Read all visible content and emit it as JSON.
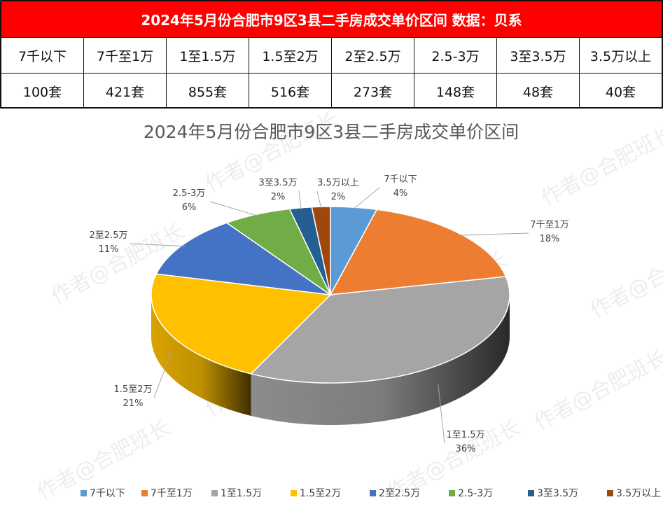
{
  "table": {
    "title": "2024年5月份合肥市9区3县二手房成交单价区间 数据：贝系",
    "headers": [
      "7千以下",
      "7千至1万",
      "1至1.5万",
      "1.5至2万",
      "2至2.5万",
      "2.5-3万",
      "3至3.5万",
      "3.5万以上"
    ],
    "values": [
      "100套",
      "421套",
      "855套",
      "516套",
      "273套",
      "148套",
      "48套",
      "40套"
    ]
  },
  "watermark": "作者@合肥班长",
  "chart_data": {
    "type": "pie",
    "title": "2024年5月份合肥市9区3县二手房成交单价区间",
    "categories": [
      "7千以下",
      "7千至1万",
      "1至1.5万",
      "1.5至2万",
      "2至2.5万",
      "2.5-3万",
      "3至3.5万",
      "3.5万以上"
    ],
    "values": [
      100,
      421,
      855,
      516,
      273,
      148,
      48,
      40
    ],
    "percent_labels": [
      "4%",
      "18%",
      "36%",
      "21%",
      "11%",
      "6%",
      "2%",
      "2%"
    ],
    "colors": [
      "#5b9bd5",
      "#ed7d31",
      "#a5a5a5",
      "#ffc000",
      "#4472c4",
      "#70ad47",
      "#255e91",
      "#9e480e"
    ],
    "legend_position": "bottom",
    "three_d": true
  }
}
